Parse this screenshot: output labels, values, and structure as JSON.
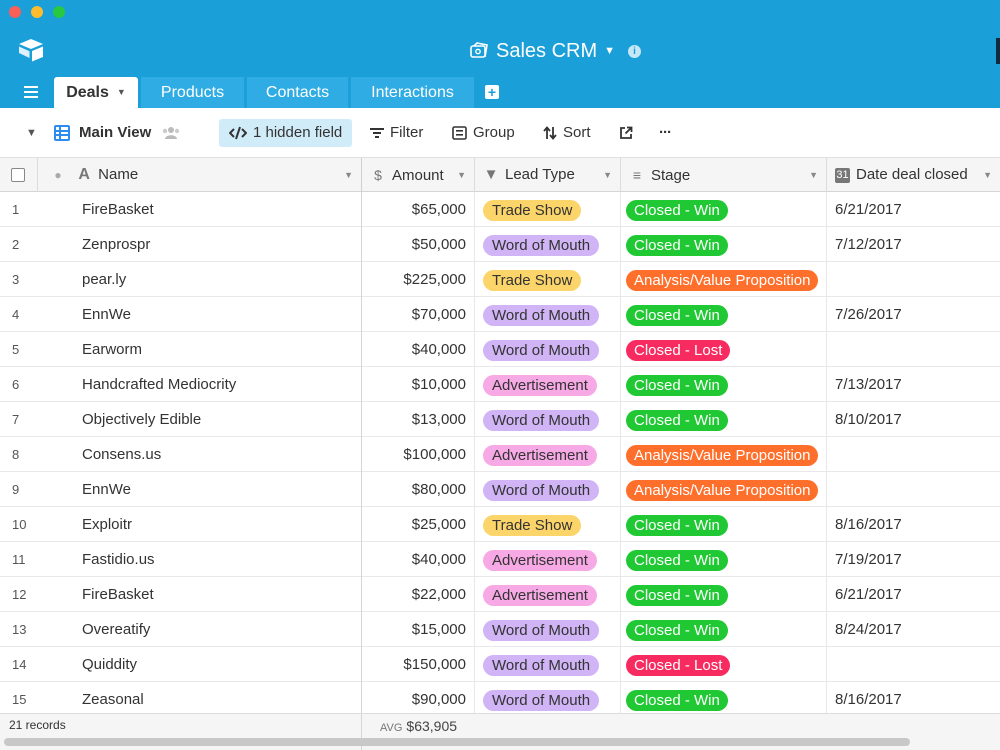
{
  "window": {
    "title": "Sales CRM"
  },
  "tabs": [
    {
      "label": "Deals",
      "active": true
    },
    {
      "label": "Products",
      "active": false
    },
    {
      "label": "Contacts",
      "active": false
    },
    {
      "label": "Interactions",
      "active": false
    }
  ],
  "toolbar": {
    "view_name": "Main View",
    "hidden_field": "1 hidden field",
    "filter": "Filter",
    "group": "Group",
    "sort": "Sort",
    "more": "···"
  },
  "columns": {
    "name": "Name",
    "amount": "Amount",
    "lead_type": "Lead Type",
    "stage": "Stage",
    "date": "Date deal closed"
  },
  "lead_colors": {
    "Trade Show": "#fcd56a",
    "Word of Mouth": "#d0b4f5",
    "Advertisement": "#f7a9e6"
  },
  "stage_colors": {
    "Closed - Win": "#20c933",
    "Analysis/Value Proposition": "#ff6f2c",
    "Closed - Lost": "#f82b60"
  },
  "rows": [
    {
      "num": "1",
      "name": "FireBasket",
      "amount": "$65,000",
      "lead": "Trade Show",
      "stage": "Closed - Win",
      "date": "6/21/2017"
    },
    {
      "num": "2",
      "name": "Zenprospr",
      "amount": "$50,000",
      "lead": "Word of Mouth",
      "stage": "Closed - Win",
      "date": "7/12/2017"
    },
    {
      "num": "3",
      "name": "pear.ly",
      "amount": "$225,000",
      "lead": "Trade Show",
      "stage": "Analysis/Value Proposition",
      "date": ""
    },
    {
      "num": "4",
      "name": "EnnWe",
      "amount": "$70,000",
      "lead": "Word of Mouth",
      "stage": "Closed - Win",
      "date": "7/26/2017"
    },
    {
      "num": "5",
      "name": "Earworm",
      "amount": "$40,000",
      "lead": "Word of Mouth",
      "stage": "Closed - Lost",
      "date": ""
    },
    {
      "num": "6",
      "name": "Handcrafted Mediocrity",
      "amount": "$10,000",
      "lead": "Advertisement",
      "stage": "Closed - Win",
      "date": "7/13/2017"
    },
    {
      "num": "7",
      "name": "Objectively Edible",
      "amount": "$13,000",
      "lead": "Word of Mouth",
      "stage": "Closed - Win",
      "date": "8/10/2017"
    },
    {
      "num": "8",
      "name": "Consens.us",
      "amount": "$100,000",
      "lead": "Advertisement",
      "stage": "Analysis/Value Proposition",
      "date": ""
    },
    {
      "num": "9",
      "name": "EnnWe",
      "amount": "$80,000",
      "lead": "Word of Mouth",
      "stage": "Analysis/Value Proposition",
      "date": ""
    },
    {
      "num": "10",
      "name": "Exploitr",
      "amount": "$25,000",
      "lead": "Trade Show",
      "stage": "Closed - Win",
      "date": "8/16/2017"
    },
    {
      "num": "11",
      "name": "Fastidio.us",
      "amount": "$40,000",
      "lead": "Advertisement",
      "stage": "Closed - Win",
      "date": "7/19/2017"
    },
    {
      "num": "12",
      "name": "FireBasket",
      "amount": "$22,000",
      "lead": "Advertisement",
      "stage": "Closed - Win",
      "date": "6/21/2017"
    },
    {
      "num": "13",
      "name": "Overeatify",
      "amount": "$15,000",
      "lead": "Word of Mouth",
      "stage": "Closed - Win",
      "date": "8/24/2017"
    },
    {
      "num": "14",
      "name": "Quiddity",
      "amount": "$150,000",
      "lead": "Word of Mouth",
      "stage": "Closed - Lost",
      "date": ""
    },
    {
      "num": "15",
      "name": "Zeasonal",
      "amount": "$90,000",
      "lead": "Word of Mouth",
      "stage": "Closed - Win",
      "date": "8/16/2017"
    }
  ],
  "footer": {
    "records": "21 records",
    "avg_label": "AVG",
    "avg_value": "$63,905"
  }
}
